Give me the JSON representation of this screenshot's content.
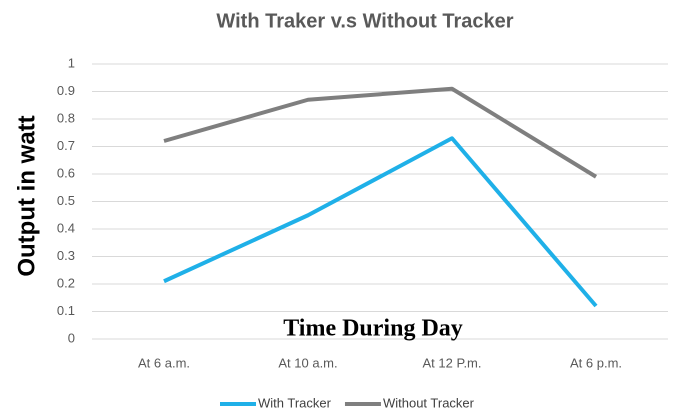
{
  "chart_data": {
    "type": "line",
    "title": "With Traker v.s Without Tracker",
    "y_label": "Output in watt",
    "x_label": "Time During Day",
    "categories": [
      "At 6 a.m.",
      "At 10 a.m.",
      "At 12 P.m.",
      "At 6 p.m."
    ],
    "series": [
      {
        "name": "With Tracker",
        "color": "#1fb0e8",
        "values": [
          0.21,
          0.45,
          0.73,
          0.12
        ]
      },
      {
        "name": "Without Tracker",
        "color": "#7f7f7f",
        "values": [
          0.72,
          0.87,
          0.91,
          0.59
        ]
      }
    ],
    "ylim": [
      0,
      1
    ],
    "yticks": [
      0,
      0.1,
      0.2,
      0.3,
      0.4,
      0.5,
      0.6,
      0.7,
      0.8,
      0.9,
      1
    ],
    "grid": true,
    "legend": "bottom"
  }
}
